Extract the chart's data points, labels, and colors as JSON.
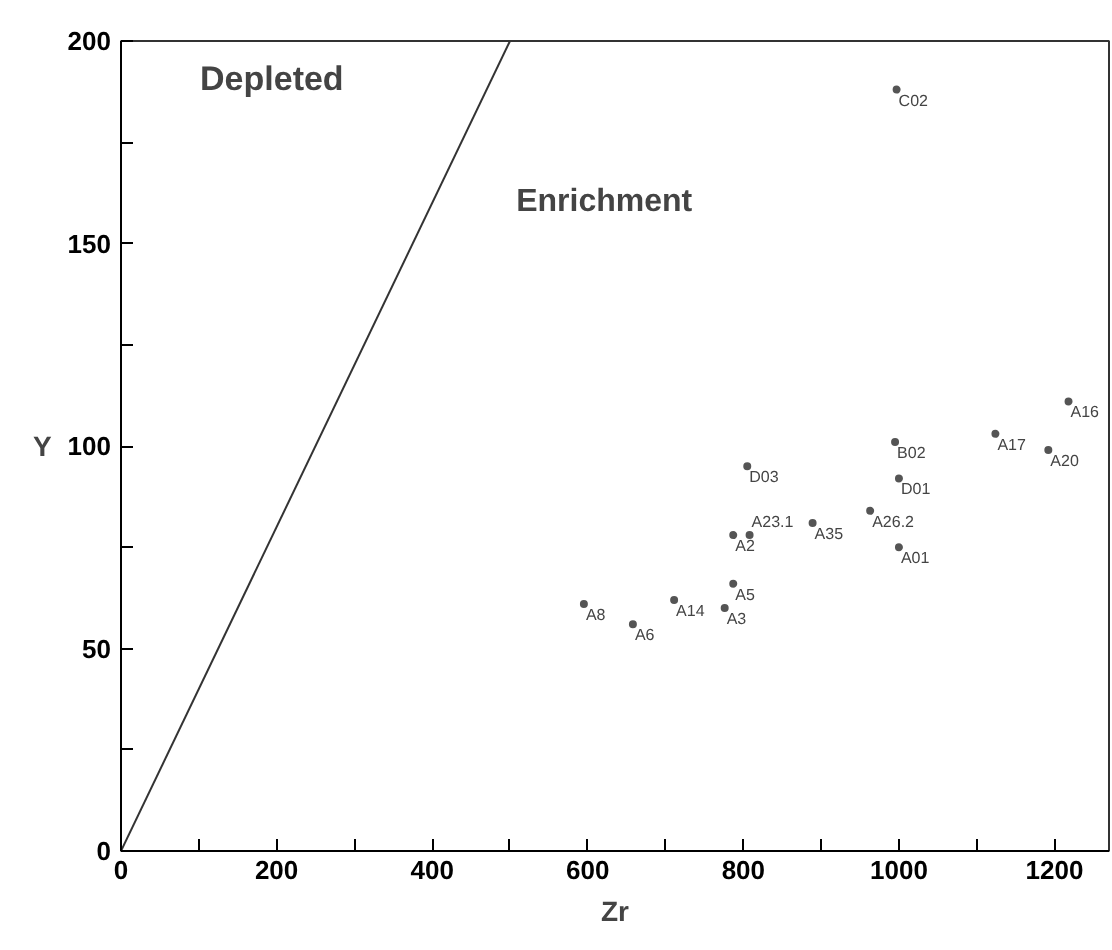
{
  "chart_data": {
    "type": "scatter",
    "xlabel": "Zr",
    "ylabel": "Y",
    "xlim": [
      0,
      1270
    ],
    "ylim": [
      0,
      200
    ],
    "xticks": [
      0,
      {
        "value": 100,
        "label": null
      },
      200,
      {
        "value": 300,
        "label": null
      },
      400,
      {
        "value": 500,
        "label": null
      },
      600,
      {
        "value": 700,
        "label": null
      },
      800,
      {
        "value": 900,
        "label": null
      },
      1000,
      {
        "value": 1100,
        "label": null
      },
      1200
    ],
    "yticks": [
      0,
      {
        "value": 25,
        "label": null
      },
      50,
      {
        "value": 75,
        "label": null
      },
      100,
      {
        "value": 125,
        "label": null
      },
      150,
      {
        "value": 175,
        "label": null
      },
      200
    ],
    "grid": false,
    "series": [
      {
        "marker": "circle",
        "color": "#555555",
        "x": [
          997,
          995,
          1000,
          805,
          889,
          963,
          1000,
          787,
          808,
          595,
          658,
          711,
          787,
          776,
          1124,
          1192,
          1218
        ],
        "values": [
          188,
          101,
          92,
          95,
          81,
          84,
          75,
          78,
          78,
          61,
          56,
          62,
          66,
          60,
          103,
          99,
          111
        ]
      },
      {
        "type": "line",
        "color": "#333333",
        "line_style": "solid",
        "x": [
          0,
          500
        ],
        "values": [
          0,
          200
        ]
      }
    ],
    "annotations": [
      "Depleted",
      "Enrichment",
      {
        "text": "C02",
        "x": 997,
        "y": 188
      },
      {
        "text": "B02",
        "x": 995,
        "y": 101
      },
      {
        "text": "D01",
        "x": 1000,
        "y": 92
      },
      {
        "text": "D03",
        "x": 805,
        "y": 95
      },
      {
        "text": "A35",
        "x": 889,
        "y": 81
      },
      {
        "text": "A26.2",
        "x": 963,
        "y": 84
      },
      {
        "text": "A01",
        "x": 1000,
        "y": 75
      },
      {
        "text": "A2",
        "x": 787,
        "y": 78
      },
      {
        "text": "A23.1",
        "x": 808,
        "y": 78
      },
      {
        "text": "A8",
        "x": 595,
        "y": 61
      },
      {
        "text": "A6",
        "x": 658,
        "y": 56
      },
      {
        "text": "A14",
        "x": 711,
        "y": 62
      },
      {
        "text": "A5",
        "x": 787,
        "y": 66
      },
      {
        "text": "A3",
        "x": 776,
        "y": 60
      },
      {
        "text": "A17",
        "x": 1124,
        "y": 103
      },
      {
        "text": "A20",
        "x": 1192,
        "y": 99
      },
      {
        "text": "A16",
        "x": 1218,
        "y": 111
      }
    ]
  }
}
